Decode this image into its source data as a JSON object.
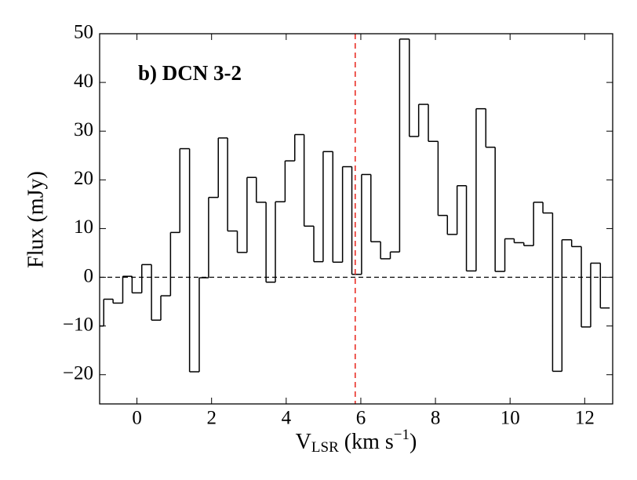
{
  "chart_data": {
    "type": "histogram",
    "annotation": "b) DCN 3-2",
    "ylabel": "Flux (mJy)",
    "xlabel": {
      "main": "V",
      "sub": "LSR",
      "rest": " (km s",
      "sup": "−1",
      "end": ")"
    },
    "bins": [
      -1.15,
      -0.89,
      -0.64,
      -0.38,
      -0.13,
      0.13,
      0.39,
      0.64,
      0.9,
      1.15,
      1.41,
      1.67,
      1.92,
      2.18,
      2.43,
      2.69,
      2.95,
      3.2,
      3.46,
      3.71,
      3.97,
      4.23,
      4.48,
      4.74,
      4.99,
      5.25,
      5.51,
      5.76,
      6.02,
      6.27,
      6.53,
      6.79,
      7.04,
      7.3,
      7.55,
      7.81,
      8.07,
      8.32,
      8.58,
      8.83,
      9.09,
      9.35,
      9.6,
      9.86,
      10.11,
      10.37,
      10.63,
      10.88,
      11.14,
      11.39,
      11.65,
      11.91,
      12.16,
      12.42,
      12.67
    ],
    "values": [
      -10,
      -4.5,
      -5.3,
      0.2,
      -3.2,
      2.6,
      -8.8,
      -3.8,
      9.2,
      26.4,
      -19.4,
      -0.1,
      16.4,
      28.6,
      9.5,
      5.1,
      20.5,
      15.4,
      -1.0,
      15.5,
      23.9,
      29.3,
      10.5,
      3.2,
      25.8,
      3.1,
      22.7,
      0.6,
      21.1,
      7.3,
      3.8,
      5.2,
      48.9,
      28.9,
      35.5,
      27.9,
      12.7,
      8.8,
      18.8,
      1.3,
      34.6,
      26.7,
      1.2,
      7.9,
      7.1,
      6.5,
      15.4,
      13.2,
      -19.3,
      7.7,
      6.3,
      -10.2,
      2.9,
      -6.3
    ],
    "color": "#000000",
    "xlim": [
      -1,
      12.75
    ],
    "ylim": [
      -26,
      50
    ],
    "xticks": [
      0,
      2,
      4,
      6,
      8,
      10,
      12
    ],
    "yticks": [
      {
        "value": -20,
        "label": "−20"
      },
      {
        "value": -10,
        "label": "−10"
      },
      0,
      10,
      20,
      30,
      40,
      50
    ],
    "hline": {
      "value": 0,
      "color": "#000000"
    },
    "vline": {
      "value": 5.85,
      "color": "#e8221a"
    }
  }
}
